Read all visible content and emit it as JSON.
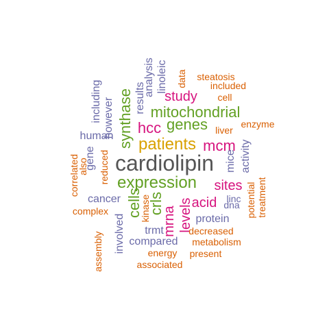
{
  "colors": {
    "gray": "#555555",
    "orange": "#d95f02",
    "purple": "#6a6aa8",
    "magenta": "#d6137e",
    "green": "#62a023",
    "gold": "#d9a100",
    "brown": "#a5761d"
  },
  "words": [
    {
      "text": "cardiolipin",
      "color": "gray",
      "size": 6,
      "rotated": false
    },
    {
      "text": "patients",
      "color": "gold",
      "size": 5,
      "rotated": false
    },
    {
      "text": "expression",
      "color": "green",
      "size": 5,
      "rotated": false
    },
    {
      "text": "mitochondrial",
      "color": "green",
      "size": 4,
      "rotated": false
    },
    {
      "text": "genes",
      "color": "green",
      "size": 4,
      "rotated": false
    },
    {
      "text": "synthase",
      "color": "green",
      "size": 4,
      "rotated": true
    },
    {
      "text": "cells",
      "color": "green",
      "size": 4,
      "rotated": true
    },
    {
      "text": "crls",
      "color": "green",
      "size": 4,
      "rotated": true
    },
    {
      "text": "hcc",
      "color": "magenta",
      "size": 4,
      "rotated": false
    },
    {
      "text": "mcm",
      "color": "magenta",
      "size": 4,
      "rotated": false
    },
    {
      "text": "sites",
      "color": "magenta",
      "size": 3,
      "rotated": false
    },
    {
      "text": "acid",
      "color": "magenta",
      "size": 3,
      "rotated": false
    },
    {
      "text": "mrna",
      "color": "magenta",
      "size": 3,
      "rotated": true
    },
    {
      "text": "levels",
      "color": "magenta",
      "size": 3,
      "rotated": true
    },
    {
      "text": "study",
      "color": "magenta",
      "size": 3,
      "rotated": false
    },
    {
      "text": "human",
      "color": "purple",
      "size": 2,
      "rotated": false
    },
    {
      "text": "cancer",
      "color": "purple",
      "size": 2,
      "rotated": false
    },
    {
      "text": "protein",
      "color": "purple",
      "size": 2,
      "rotated": false
    },
    {
      "text": "compared",
      "color": "purple",
      "size": 2,
      "rotated": false
    },
    {
      "text": "trmt",
      "color": "purple",
      "size": 2,
      "rotated": false
    },
    {
      "text": "including",
      "color": "purple",
      "size": 2,
      "rotated": true
    },
    {
      "text": "however",
      "color": "purple",
      "size": 2,
      "rotated": true
    },
    {
      "text": "results",
      "color": "purple",
      "size": 2,
      "rotated": true
    },
    {
      "text": "analysis",
      "color": "purple",
      "size": 2,
      "rotated": true
    },
    {
      "text": "linoleic",
      "color": "purple",
      "size": 2,
      "rotated": true
    },
    {
      "text": "gene",
      "color": "purple",
      "size": 2,
      "rotated": true
    },
    {
      "text": "mice",
      "color": "purple",
      "size": 2,
      "rotated": true
    },
    {
      "text": "activity",
      "color": "purple",
      "size": 2,
      "rotated": true
    },
    {
      "text": "involved",
      "color": "purple",
      "size": 2,
      "rotated": true
    },
    {
      "text": "linc",
      "color": "purple",
      "size": 1,
      "rotated": false
    },
    {
      "text": "dna",
      "color": "purple",
      "size": 1,
      "rotated": false
    },
    {
      "text": "steatosis",
      "color": "orange",
      "size": 1,
      "rotated": false
    },
    {
      "text": "included",
      "color": "orange",
      "size": 1,
      "rotated": false
    },
    {
      "text": "cell",
      "color": "orange",
      "size": 1,
      "rotated": false
    },
    {
      "text": "liver",
      "color": "orange",
      "size": 1,
      "rotated": false
    },
    {
      "text": "enzyme",
      "color": "orange",
      "size": 1,
      "rotated": false
    },
    {
      "text": "data",
      "color": "orange",
      "size": 1,
      "rotated": true
    },
    {
      "text": "complex",
      "color": "orange",
      "size": 1,
      "rotated": false
    },
    {
      "text": "decreased",
      "color": "orange",
      "size": 1,
      "rotated": false
    },
    {
      "text": "metabolism",
      "color": "orange",
      "size": 1,
      "rotated": false
    },
    {
      "text": "energy",
      "color": "orange",
      "size": 1,
      "rotated": false
    },
    {
      "text": "present",
      "color": "orange",
      "size": 1,
      "rotated": false
    },
    {
      "text": "associated",
      "color": "orange",
      "size": 1,
      "rotated": false
    },
    {
      "text": "correlated",
      "color": "orange",
      "size": 1,
      "rotated": true
    },
    {
      "text": "also",
      "color": "orange",
      "size": 1,
      "rotated": true
    },
    {
      "text": "reduced",
      "color": "orange",
      "size": 1,
      "rotated": true
    },
    {
      "text": "kinase",
      "color": "orange",
      "size": 1,
      "rotated": true
    },
    {
      "text": "potential",
      "color": "orange",
      "size": 1,
      "rotated": true
    },
    {
      "text": "treatment",
      "color": "orange",
      "size": 1,
      "rotated": true
    },
    {
      "text": "assembly",
      "color": "orange",
      "size": 1,
      "rotated": true
    }
  ]
}
